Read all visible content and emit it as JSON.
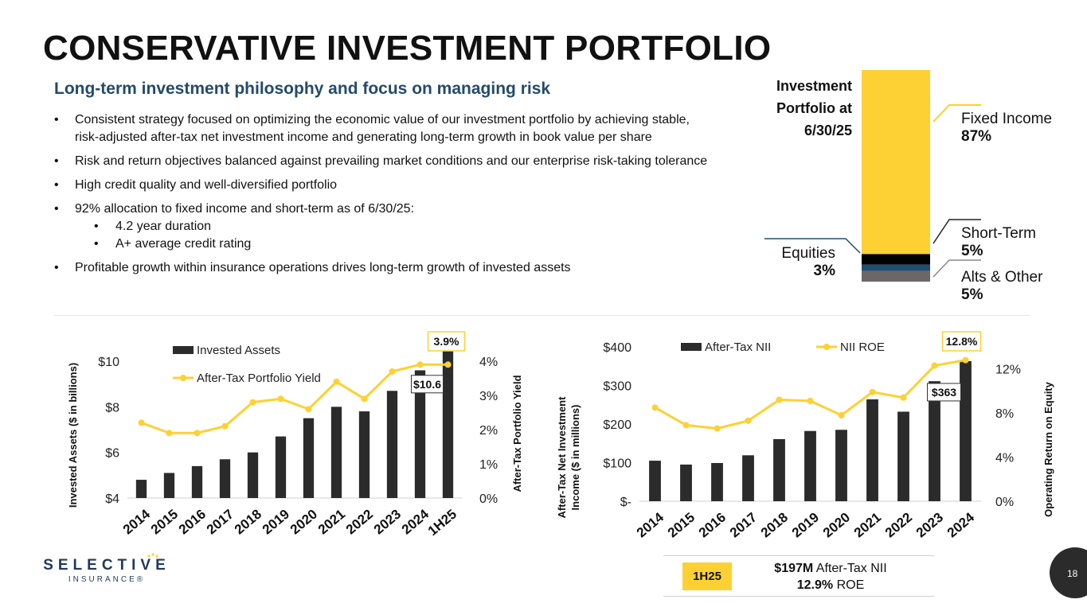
{
  "title": "CONSERVATIVE INVESTMENT PORTFOLIO",
  "subtitle": "Long-term investment philosophy and focus on managing risk",
  "bullets": [
    "Consistent strategy focused on optimizing the economic value of our investment portfolio by achieving stable, risk-adjusted after-tax net investment income and generating long-term growth in book value per share",
    "Risk and return objectives balanced against prevailing market conditions and our enterprise risk-taking tolerance",
    "High credit quality and well-diversified portfolio",
    "92% allocation to fixed income and short-term as of 6/30/25:",
    "Profitable growth within insurance operations drives long-term growth of invested assets"
  ],
  "sub_bullets": [
    "4.2 year duration",
    "A+ average credit rating"
  ],
  "portfolio": {
    "title_lines": [
      "Investment",
      "Portfolio at",
      "6/30/25"
    ],
    "segments": [
      {
        "name": "Fixed Income",
        "pct": "87%",
        "value": 87,
        "color": "#fdd134"
      },
      {
        "name": "Short-Term",
        "pct": "5%",
        "value": 5,
        "color": "#000000"
      },
      {
        "name": "Equities",
        "pct": "3%",
        "value": 3,
        "color": "#1f4e70"
      },
      {
        "name": "Alts & Other",
        "pct": "5%",
        "value": 5,
        "color": "#6b6767"
      }
    ]
  },
  "chart_data": [
    {
      "type": "bar",
      "categories": [
        "2014",
        "2015",
        "2016",
        "2017",
        "2018",
        "2019",
        "2020",
        "2021",
        "2022",
        "2023",
        "2024",
        "1H25"
      ],
      "series": [
        {
          "name": "Invested Assets",
          "type": "bar",
          "axis": "left",
          "values": [
            4.8,
            5.1,
            5.4,
            5.7,
            6.0,
            6.7,
            7.5,
            8.0,
            7.8,
            8.7,
            9.6,
            10.6
          ]
        },
        {
          "name": "After-Tax Portfolio Yield",
          "type": "line",
          "axis": "right",
          "values": [
            2.2,
            1.9,
            1.9,
            2.1,
            2.8,
            2.9,
            2.6,
            3.4,
            2.9,
            3.7,
            3.9,
            3.9
          ]
        }
      ],
      "ylabel": "Invested Assets ($ in billions)",
      "y2label": "After-Tax Portfolio Yield",
      "ylim": [
        4,
        10
      ],
      "y2lim": [
        0,
        4
      ],
      "yticks": [
        "$4",
        "$6",
        "$8",
        "$10"
      ],
      "y2ticks": [
        "0%",
        "1%",
        "2%",
        "3%",
        "4%"
      ],
      "callout_bar": "$10.6",
      "callout_line": "3.9%"
    },
    {
      "type": "bar",
      "categories": [
        "2014",
        "2015",
        "2016",
        "2017",
        "2018",
        "2019",
        "2020",
        "2021",
        "2022",
        "2023",
        "2024"
      ],
      "series": [
        {
          "name": "After-Tax NII",
          "type": "bar",
          "axis": "left",
          "values": [
            105,
            95,
            99,
            119,
            161,
            182,
            185,
            264,
            232,
            311,
            363
          ]
        },
        {
          "name": "NII ROE",
          "type": "line",
          "axis": "right",
          "values": [
            8.5,
            6.9,
            6.6,
            7.3,
            9.2,
            9.1,
            7.8,
            9.9,
            9.4,
            12.3,
            12.8
          ]
        }
      ],
      "ylabel_lines": [
        "After-Tax Net Investment",
        "Income ($ in millions)"
      ],
      "y2label": "Operating Return on Equity",
      "ylim": [
        0,
        400
      ],
      "y2lim": [
        0,
        14
      ],
      "yticks": [
        "$-",
        "$100",
        "$200",
        "$300",
        "$400"
      ],
      "y2ticks": [
        "0%",
        "4%",
        "8%",
        "12%"
      ],
      "callout_bar": "$363",
      "callout_line": "12.8%"
    }
  ],
  "h1": {
    "tag": "1H25",
    "line1_bold": "$197M",
    "line1_rest": " After-Tax NII",
    "line2_bold": "12.9%",
    "line2_rest": " ROE"
  },
  "logo": {
    "main": "SELECTIVE",
    "sub": "INSURANCE®"
  },
  "page_number": "18",
  "colors": {
    "bar": "#2b2b2b",
    "line": "#fdd134",
    "title_blue": "#244a6b"
  }
}
